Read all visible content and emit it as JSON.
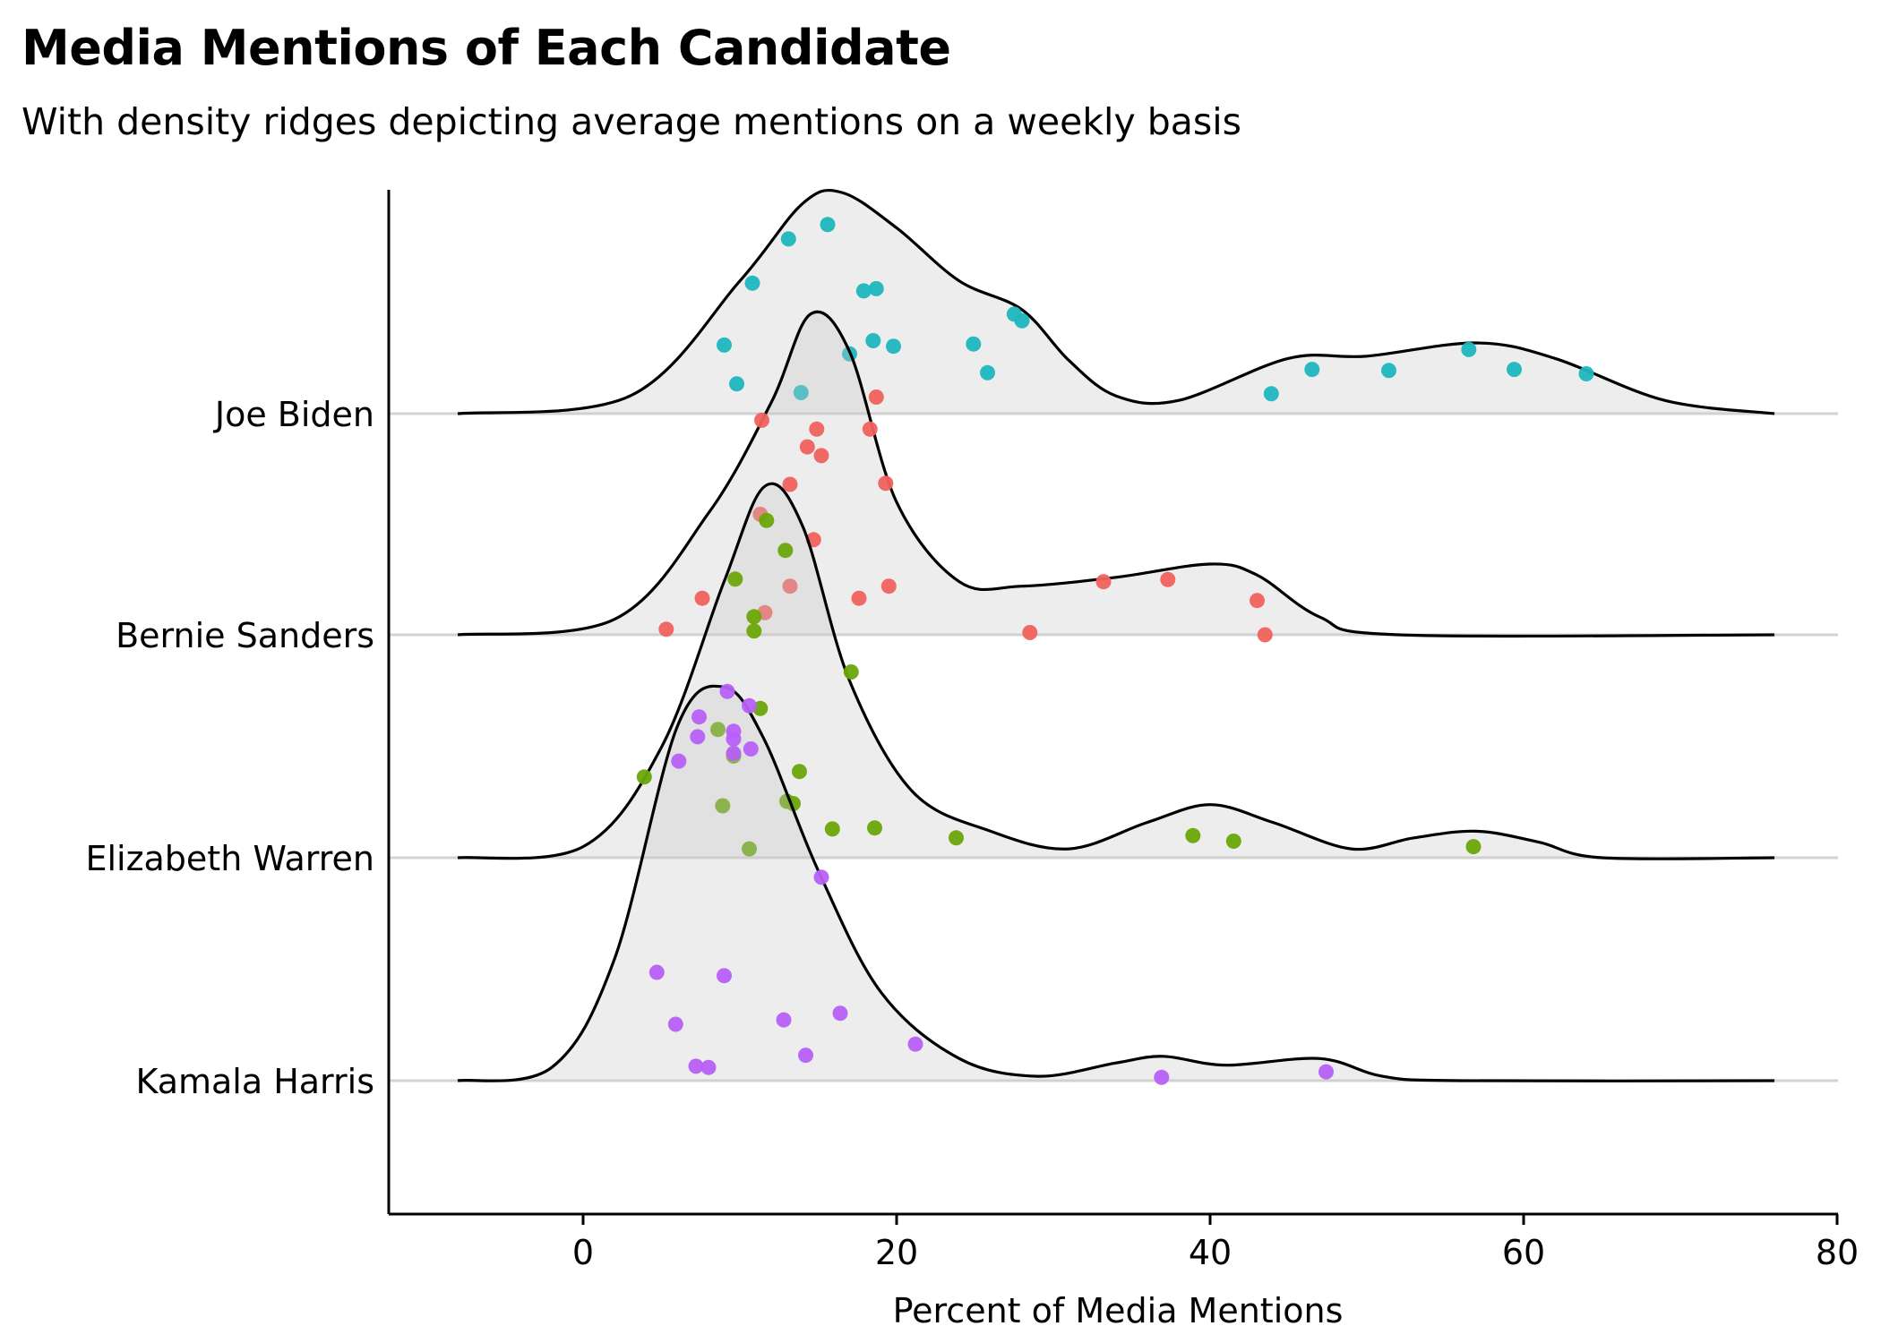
{
  "chart_data": {
    "type": "ridgeline",
    "title": "Media Mentions of Each Candidate",
    "subtitle": "With density ridges depicting average mentions on a weekly basis",
    "xlabel": "Percent of Media Mentions",
    "ylabel": "",
    "xlim": [
      -12.4,
      80
    ],
    "x_ticks": [
      0,
      20,
      40,
      60,
      80
    ],
    "grid": "horizontal baselines only",
    "legend": "none",
    "candidates": [
      {
        "name": "Joe Biden",
        "color": "#1fb7bf",
        "points": [
          [
            15.6,
            0.855
          ],
          [
            13.1,
            0.79
          ],
          [
            10.8,
            0.59
          ],
          [
            18.7,
            0.565
          ],
          [
            17.9,
            0.555
          ],
          [
            27.5,
            0.45
          ],
          [
            28.0,
            0.42
          ],
          [
            9.0,
            0.31
          ],
          [
            18.5,
            0.33
          ],
          [
            19.8,
            0.305
          ],
          [
            24.9,
            0.315
          ],
          [
            17.0,
            0.27
          ],
          [
            25.8,
            0.185
          ],
          [
            9.8,
            0.135
          ],
          [
            13.9,
            0.095
          ],
          [
            43.9,
            0.09
          ],
          [
            46.5,
            0.2
          ],
          [
            51.4,
            0.195
          ],
          [
            56.5,
            0.29
          ],
          [
            59.4,
            0.2
          ],
          [
            64.0,
            0.18
          ]
        ],
        "density_peaks": [
          [
            -8,
            0.0
          ],
          [
            3,
            0.08
          ],
          [
            10,
            0.6
          ],
          [
            14,
            0.95
          ],
          [
            16.5,
            1.0
          ],
          [
            20,
            0.84
          ],
          [
            24,
            0.6
          ],
          [
            28,
            0.47
          ],
          [
            31,
            0.24
          ],
          [
            34,
            0.08
          ],
          [
            38,
            0.06
          ],
          [
            45,
            0.25
          ],
          [
            50,
            0.26
          ],
          [
            57,
            0.32
          ],
          [
            62,
            0.25
          ],
          [
            69,
            0.06
          ],
          [
            76,
            0.0
          ]
        ]
      },
      {
        "name": "Bernie Sanders",
        "color": "#f0625e",
        "points": [
          [
            18.7,
            1.075
          ],
          [
            11.4,
            0.97
          ],
          [
            14.9,
            0.93
          ],
          [
            18.3,
            0.93
          ],
          [
            14.3,
            0.85
          ],
          [
            15.2,
            0.81
          ],
          [
            13.2,
            0.68
          ],
          [
            19.3,
            0.685
          ],
          [
            11.3,
            0.545
          ],
          [
            14.7,
            0.43
          ],
          [
            13.2,
            0.22
          ],
          [
            7.6,
            0.165
          ],
          [
            5.3,
            0.025
          ],
          [
            11.6,
            0.1
          ],
          [
            17.6,
            0.165
          ],
          [
            19.5,
            0.22
          ],
          [
            28.5,
            0.01
          ],
          [
            33.2,
            0.24
          ],
          [
            37.3,
            0.25
          ],
          [
            43.0,
            0.155
          ],
          [
            43.5,
            0.0
          ]
        ],
        "density_peaks": [
          [
            -8,
            0.0
          ],
          [
            2,
            0.07
          ],
          [
            8,
            0.55
          ],
          [
            12,
            1.05
          ],
          [
            14.5,
            1.45
          ],
          [
            17,
            1.28
          ],
          [
            20,
            0.6
          ],
          [
            24,
            0.24
          ],
          [
            28,
            0.22
          ],
          [
            34,
            0.26
          ],
          [
            40,
            0.32
          ],
          [
            43,
            0.27
          ],
          [
            47,
            0.08
          ],
          [
            52,
            0.0
          ],
          [
            76,
            0.0
          ]
        ]
      },
      {
        "name": "Elizabeth Warren",
        "color": "#6aa60a",
        "points": [
          [
            11.7,
            1.525
          ],
          [
            12.9,
            1.39
          ],
          [
            9.7,
            1.26
          ],
          [
            10.9,
            1.09
          ],
          [
            10.9,
            1.025
          ],
          [
            17.1,
            0.84
          ],
          [
            11.3,
            0.675
          ],
          [
            8.6,
            0.58
          ],
          [
            3.9,
            0.365
          ],
          [
            13.8,
            0.39
          ],
          [
            9.6,
            0.46
          ],
          [
            13.0,
            0.255
          ],
          [
            13.4,
            0.245
          ],
          [
            8.9,
            0.235
          ],
          [
            15.9,
            0.13
          ],
          [
            18.6,
            0.135
          ],
          [
            10.6,
            0.04
          ],
          [
            23.8,
            0.09
          ],
          [
            38.9,
            0.1
          ],
          [
            41.5,
            0.075
          ],
          [
            56.8,
            0.05
          ]
        ],
        "density_peaks": [
          [
            -8,
            0.0
          ],
          [
            0,
            0.05
          ],
          [
            5,
            0.5
          ],
          [
            9,
            1.25
          ],
          [
            11.6,
            1.68
          ],
          [
            14,
            1.5
          ],
          [
            17,
            0.8
          ],
          [
            21,
            0.3
          ],
          [
            26,
            0.12
          ],
          [
            31,
            0.04
          ],
          [
            36,
            0.16
          ],
          [
            40,
            0.24
          ],
          [
            44,
            0.16
          ],
          [
            49,
            0.04
          ],
          [
            53,
            0.09
          ],
          [
            57,
            0.12
          ],
          [
            61,
            0.07
          ],
          [
            65,
            0.0
          ],
          [
            76,
            0.0
          ]
        ]
      },
      {
        "name": "Kamala Harris",
        "color": "#b760f7",
        "points": [
          [
            9.2,
            1.76
          ],
          [
            10.6,
            1.695
          ],
          [
            7.4,
            1.645
          ],
          [
            9.6,
            1.58
          ],
          [
            7.3,
            1.555
          ],
          [
            9.6,
            1.545
          ],
          [
            10.7,
            1.5
          ],
          [
            9.6,
            1.48
          ],
          [
            6.1,
            1.445
          ],
          [
            15.2,
            0.92
          ],
          [
            4.7,
            0.49
          ],
          [
            9.0,
            0.475
          ],
          [
            12.8,
            0.275
          ],
          [
            16.4,
            0.305
          ],
          [
            5.9,
            0.255
          ],
          [
            21.2,
            0.165
          ],
          [
            14.2,
            0.115
          ],
          [
            7.2,
            0.065
          ],
          [
            8.0,
            0.06
          ],
          [
            36.9,
            0.015
          ],
          [
            47.4,
            0.04
          ]
        ],
        "density_peaks": [
          [
            -8,
            0.0
          ],
          [
            -2,
            0.06
          ],
          [
            2,
            0.55
          ],
          [
            6,
            1.6
          ],
          [
            9,
            1.78
          ],
          [
            11.5,
            1.55
          ],
          [
            15,
            0.95
          ],
          [
            19,
            0.4
          ],
          [
            24,
            0.1
          ],
          [
            29,
            0.02
          ],
          [
            34,
            0.08
          ],
          [
            37,
            0.11
          ],
          [
            41,
            0.07
          ],
          [
            47,
            0.1
          ],
          [
            51,
            0.02
          ],
          [
            56,
            0.0
          ],
          [
            76,
            0.0
          ]
        ]
      }
    ]
  }
}
